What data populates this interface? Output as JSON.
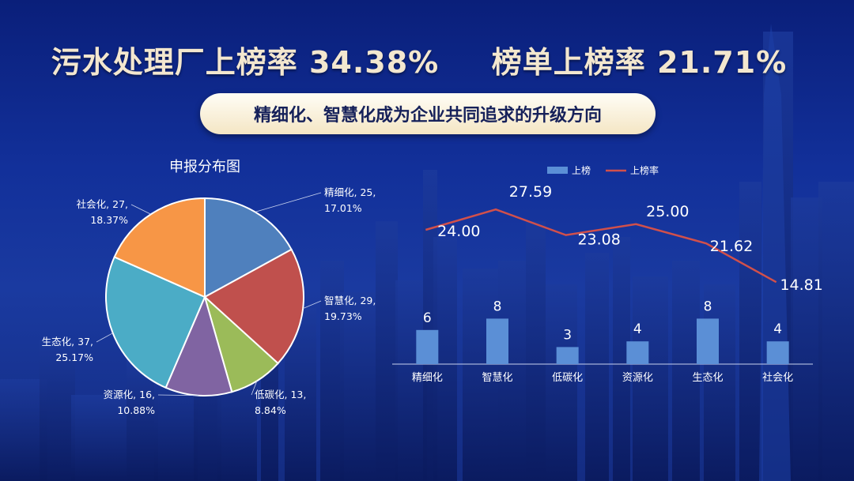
{
  "headline": {
    "part1_label": "污水处理厂上榜率",
    "part1_value": "34.38%",
    "part2_label": "榜单上榜率",
    "part2_value": "21.71%"
  },
  "subtitle": "精细化、智慧化成为企业共同追求的升级方向",
  "colors": {
    "background": "#12309a",
    "headline": "#f3e7cf",
    "bar": "#5b8fd6",
    "line": "#d1504b",
    "pie": [
      "#4f80bd",
      "#c0504d",
      "#9bbb59",
      "#8064a2",
      "#4bacc6",
      "#f79646"
    ]
  },
  "chart_data": [
    {
      "type": "pie",
      "title": "申报分布图",
      "slices": [
        {
          "label": "精细化",
          "value": 25,
          "percent": "17.01%"
        },
        {
          "label": "智慧化",
          "value": 29,
          "percent": "19.73%"
        },
        {
          "label": "低碳化",
          "value": 13,
          "percent": "8.84%"
        },
        {
          "label": "资源化",
          "value": 16,
          "percent": "10.88%"
        },
        {
          "label": "生态化",
          "value": 37,
          "percent": "25.17%"
        },
        {
          "label": "社会化",
          "value": 27,
          "percent": "18.37%"
        }
      ]
    },
    {
      "type": "bar+line",
      "categories": [
        "精细化",
        "智慧化",
        "低碳化",
        "资源化",
        "生态化",
        "社会化"
      ],
      "series": [
        {
          "name": "上榜",
          "type": "bar",
          "values": [
            6,
            8,
            3,
            4,
            8,
            4
          ],
          "labels": [
            "6",
            "8",
            "3",
            "4",
            "8",
            "4"
          ]
        },
        {
          "name": "上榜率",
          "type": "line",
          "values": [
            24.0,
            27.59,
            23.08,
            25.0,
            21.62,
            14.81
          ],
          "labels": [
            "24.00",
            "27.59",
            "23.08",
            "25.00",
            "21.62",
            "14.81"
          ]
        }
      ],
      "legend_position": "top"
    }
  ]
}
